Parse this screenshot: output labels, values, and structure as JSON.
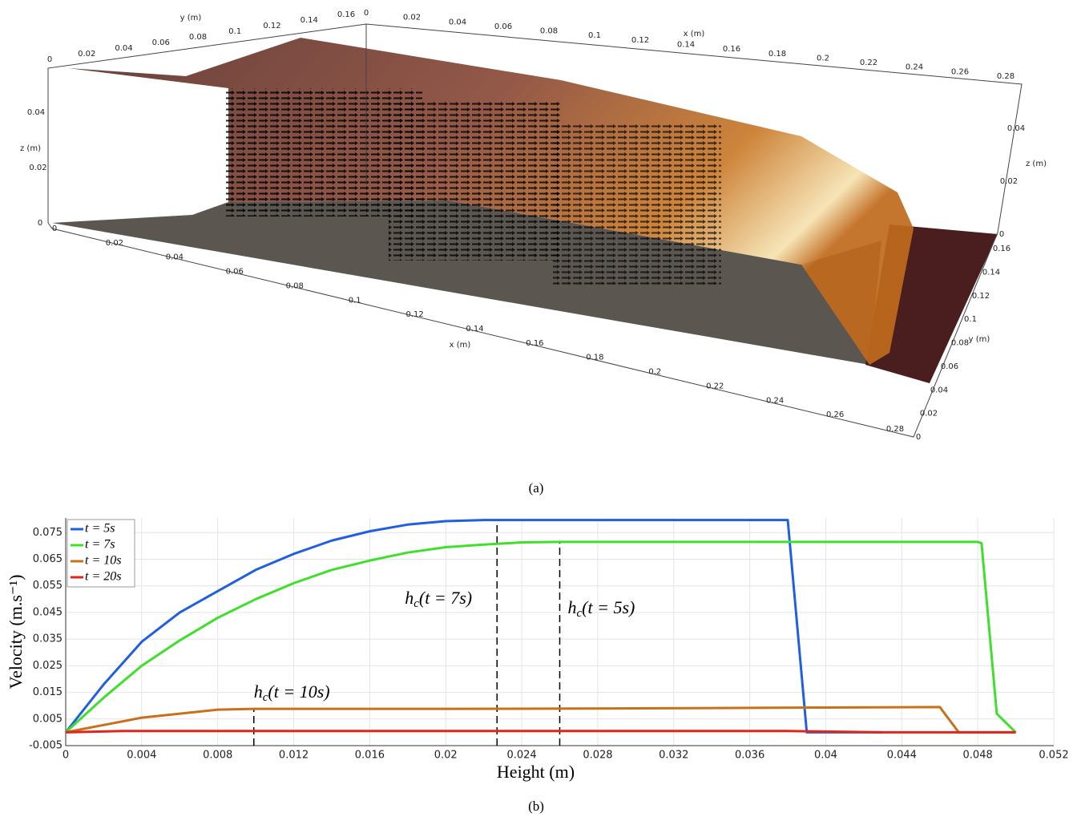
{
  "figure_a": {
    "caption": "(a)",
    "axes": [
      {
        "label": "y (m)",
        "ticks": [
          0,
          0.02,
          0.04,
          0.06,
          0.08,
          0.1,
          0.12,
          0.14,
          0.16
        ]
      },
      {
        "label": "x (m)",
        "ticks": [
          0,
          0.02,
          0.04,
          0.06,
          0.08,
          0.1,
          0.12,
          0.14,
          0.16,
          0.18,
          0.2,
          0.22,
          0.24,
          0.26,
          0.28
        ]
      },
      {
        "label": "z (m)",
        "ticks": [
          0,
          0.02,
          0.04
        ]
      },
      {
        "label": "x (m)",
        "ticks": [
          0,
          0.02,
          0.04,
          0.06,
          0.08,
          0.1,
          0.12,
          0.14,
          0.16,
          0.18,
          0.2,
          0.22,
          0.24,
          0.26,
          0.28
        ]
      },
      {
        "label": "y (m)",
        "ticks": [
          0,
          0.02,
          0.04,
          0.06,
          0.08,
          0.1,
          0.12,
          0.14,
          0.16
        ]
      },
      {
        "label": "z (m)",
        "ticks": [
          0,
          0.02,
          0.04
        ]
      }
    ]
  },
  "chart_data": {
    "type": "line",
    "caption": "(b)",
    "x_label": "Height (m)",
    "y_label": "Velocity (m.s⁻¹)",
    "xlim": [
      0,
      0.052
    ],
    "ylim": [
      -0.005,
      0.0805
    ],
    "xticks": [
      0,
      0.004,
      0.008,
      0.012,
      0.016,
      0.02,
      0.024,
      0.028,
      0.032,
      0.036,
      0.04,
      0.044,
      0.048,
      0.052
    ],
    "yticks": [
      -0.005,
      0.005,
      0.015,
      0.025,
      0.035,
      0.045,
      0.055,
      0.065,
      0.075
    ],
    "grid": true,
    "legend": "top-left",
    "series": [
      {
        "name": "t = 5s",
        "color": "#1f5fe0",
        "x": [
          0,
          0.002,
          0.004,
          0.006,
          0.008,
          0.01,
          0.012,
          0.014,
          0.016,
          0.018,
          0.02,
          0.022,
          0.024,
          0.038,
          0.039,
          0.043
        ],
        "values": [
          0,
          0.018,
          0.034,
          0.045,
          0.053,
          0.061,
          0.067,
          0.072,
          0.0755,
          0.078,
          0.0793,
          0.0797,
          0.0797,
          0.0797,
          0,
          0
        ]
      },
      {
        "name": "t = 7s",
        "color": "#3fe02c",
        "x": [
          0,
          0.002,
          0.004,
          0.006,
          0.008,
          0.01,
          0.012,
          0.014,
          0.016,
          0.018,
          0.02,
          0.022,
          0.024,
          0.026,
          0.048,
          0.0482,
          0.049,
          0.05
        ],
        "values": [
          0,
          0.013,
          0.025,
          0.0345,
          0.043,
          0.05,
          0.056,
          0.061,
          0.0645,
          0.0675,
          0.0695,
          0.0705,
          0.0713,
          0.0715,
          0.0715,
          0.071,
          0.007,
          0
        ]
      },
      {
        "name": "t = 10s",
        "color": "#c8701a",
        "x": [
          0,
          0.004,
          0.008,
          0.01,
          0.02,
          0.03,
          0.04,
          0.046,
          0.047,
          0.05
        ],
        "values": [
          0,
          0.0055,
          0.0085,
          0.0088,
          0.0088,
          0.009,
          0.0093,
          0.0095,
          0,
          0
        ]
      },
      {
        "name": "t = 20s",
        "color": "#e0261c",
        "x": [
          0,
          0.003,
          0.038,
          0.043,
          0.05
        ],
        "values": [
          0,
          0.0005,
          0.0005,
          0,
          0
        ]
      }
    ],
    "annotations": [
      {
        "x": 0.0227,
        "y": 0.0797,
        "label": {
          "main": "h",
          "sub": "c",
          "rest": "(t = 7s)"
        }
      },
      {
        "x": 0.026,
        "y": 0.0715,
        "label": {
          "main": "h",
          "sub": "c",
          "rest": "(t = 5s)"
        }
      },
      {
        "x": 0.0099,
        "y": 0.0085,
        "label": {
          "main": "h",
          "sub": "c",
          "rest": "(t = 10s)"
        }
      }
    ]
  }
}
